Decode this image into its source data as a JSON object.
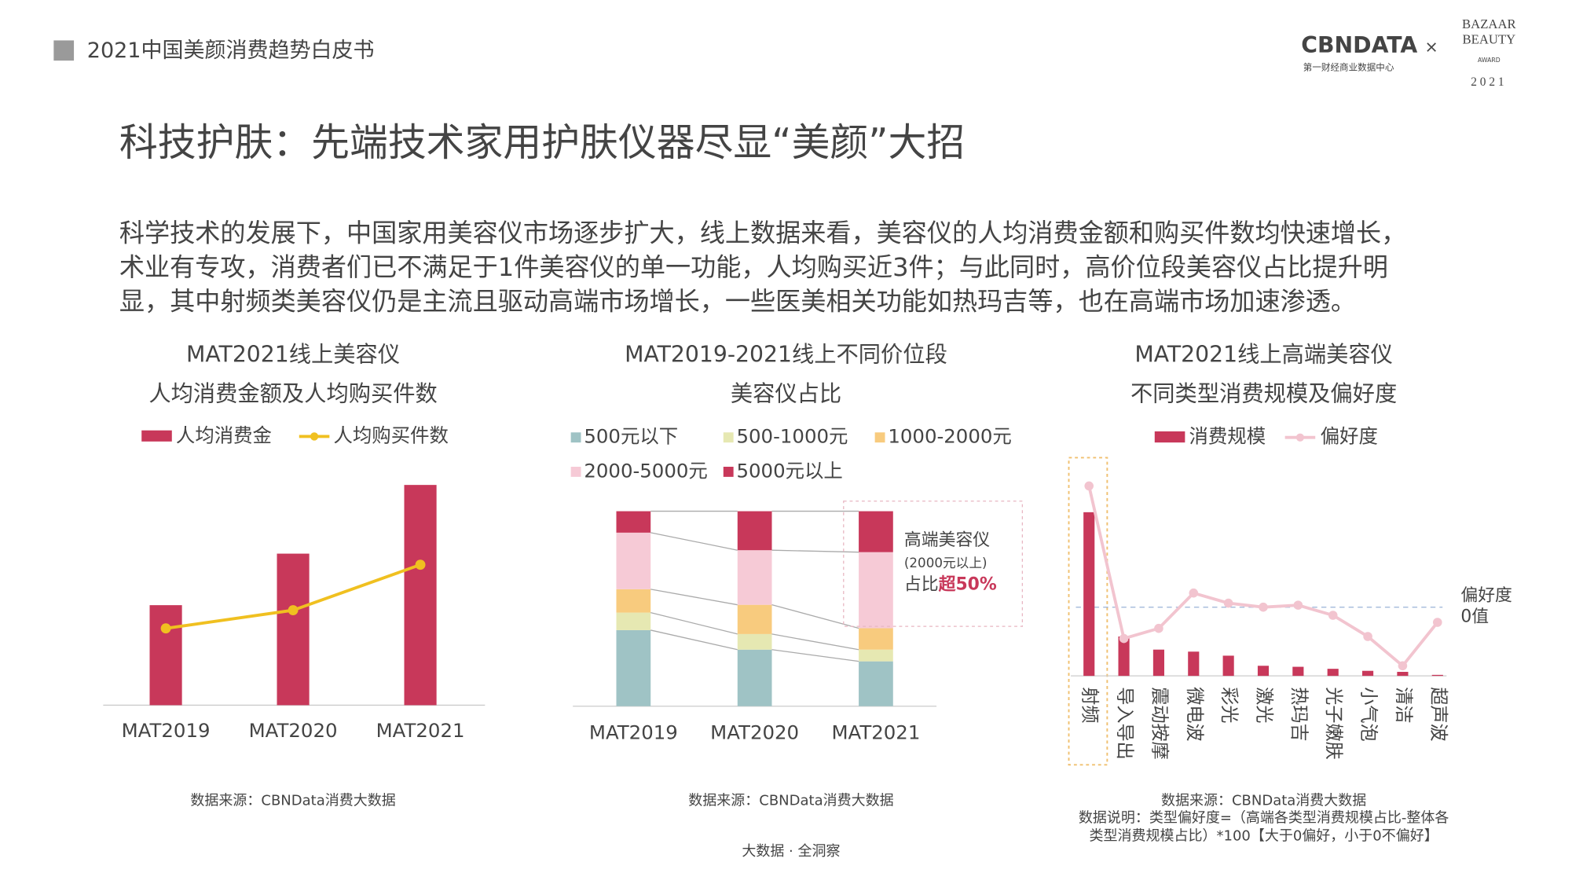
{
  "header": {
    "report": "2021中国美颜消费趋势白皮书",
    "logo": "CBNDATA",
    "logo_sub": "第一财经商业数据中心",
    "cross": "×",
    "award": [
      "BAZAAR",
      "BEAUTY",
      "AWARD",
      "2021"
    ]
  },
  "title": "科技护肤：先端技术家用护肤仪器尽显“美颜”大招",
  "paragraph": [
    "科学技术的发展下，中国家用美容仪市场逐步扩大，线上数据来看，美容仪的人均消费金额和购买件数均快速增长，",
    "术业有专攻，消费者们已不满足于1件美容仪的单一功能，人均购买近3件；与此同时，高价位段美容仪占比提升明",
    "显，其中射频类美容仪仍是主流且驱动高端市场增长，一些医美相关功能如热玛吉等，也在高端市场加速渗透。"
  ],
  "chart_data": [
    {
      "type": "bar_line",
      "title": [
        "MAT2021线上美容仪",
        "人均消费金额及人均购买件数"
      ],
      "categories": [
        "MAT2019",
        "MAT2020",
        "MAT2021"
      ],
      "series": [
        {
          "name": "人均消费金",
          "color": "#c8385a",
          "values": [
            99,
            150,
            218
          ]
        },
        {
          "name": "人均购买件数",
          "color": "#f0c020",
          "values": [
            76,
            94,
            139
          ],
          "axis": "y2"
        }
      ],
      "source": "数据来源：CBNData消费大数据"
    },
    {
      "type": "stacked_bar",
      "title": [
        "MAT2019-2021线上不同价位段",
        "美容仪占比"
      ],
      "categories": [
        "MAT2019",
        "MAT2020",
        "MAT2021"
      ],
      "series": [
        {
          "name": "500元以下",
          "color": "#9fc3c5",
          "values": [
            39,
            29,
            23
          ]
        },
        {
          "name": "500-1000元",
          "color": "#e6e8b2",
          "values": [
            9,
            8,
            6
          ]
        },
        {
          "name": "1000-2000元",
          "color": "#f8cb7e",
          "values": [
            12,
            15,
            11
          ]
        },
        {
          "name": "2000-5000元",
          "color": "#f6cad6",
          "values": [
            29,
            28,
            39
          ]
        },
        {
          "name": "5000元以上",
          "color": "#c8385a",
          "values": [
            11,
            20,
            21
          ]
        }
      ],
      "annotation": [
        "高端美容仪",
        "(2000元以上)",
        "占比",
        "超50%"
      ],
      "source": "数据来源：CBNData消费大数据"
    },
    {
      "type": "bar_line",
      "title": [
        "MAT2021线上高端美容仪",
        "不同类型消费规模及偏好度"
      ],
      "categories": [
        "射频",
        "导入导出",
        "震动按摩",
        "微电波",
        "彩光",
        "激光",
        "热玛吉",
        "光子嫩肤",
        "小气泡",
        "清洁",
        "超声波"
      ],
      "series": [
        {
          "name": "消费规模",
          "color": "#c8385a",
          "values": [
            162,
            39,
            26,
            24,
            20,
            10,
            9,
            7,
            5,
            4,
            1
          ]
        },
        {
          "name": "偏好度",
          "color": "#f2c4cf",
          "values": [
            120,
            -31,
            -21,
            14,
            4,
            0,
            2,
            -8,
            -29,
            -58,
            -15
          ],
          "axis": "y2"
        }
      ],
      "annotation": [
        "偏好度",
        "0值"
      ],
      "source": [
        "数据来源：CBNData消费大数据",
        "数据说明：类型偏好度=（高端各类型消费规模占比-整体各",
        "类型消费规模占比）*100【大于0偏好，小于0不偏好】"
      ]
    }
  ],
  "footer": "大数据 · 全洞察"
}
